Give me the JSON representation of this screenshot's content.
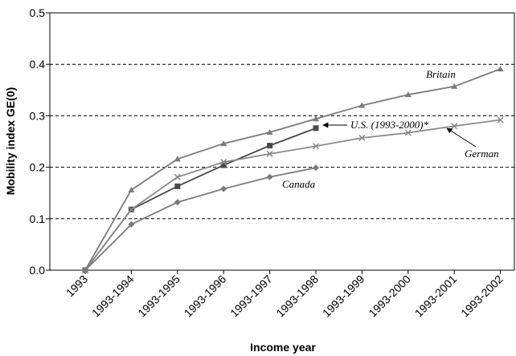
{
  "chart_data": {
    "type": "line",
    "y_label": "Mobility index GE(0)",
    "x_label": "Income year",
    "categories": [
      "1993",
      "1993-1994",
      "1993-1995",
      "1993-1996",
      "1993-1997",
      "1993-1998",
      "1993-1999",
      "1993-2000",
      "1993-2001",
      "1993-2002"
    ],
    "series": [
      {
        "name": "Britain",
        "color": "#7a7a7a",
        "marker": "triangle",
        "values": [
          0,
          0.156,
          0.216,
          0.246,
          0.268,
          0.294,
          0.32,
          0.341,
          0.357,
          0.391
        ]
      },
      {
        "name": "U.S. (1993-2000)*",
        "color": "#4a4a4a",
        "marker": "square",
        "values": [
          0,
          0.118,
          0.163,
          0.204,
          0.242,
          0.276,
          null,
          null,
          null,
          null
        ]
      },
      {
        "name": "German",
        "color": "#8a8a8a",
        "marker": "x",
        "values": [
          0,
          0.118,
          0.181,
          0.21,
          0.226,
          0.241,
          0.257,
          0.267,
          0.28,
          0.292
        ]
      },
      {
        "name": "Canada",
        "color": "#7a7a7a",
        "marker": "diamond",
        "values": [
          0,
          0.089,
          0.132,
          0.158,
          0.181,
          0.199,
          null,
          null,
          null,
          null
        ]
      }
    ],
    "ylim": [
      0,
      0.5
    ],
    "yticks": [
      {
        "value": 0,
        "label": "0.0"
      },
      0.1,
      0.2,
      0.3,
      0.4,
      0.5
    ],
    "grid": true
  }
}
